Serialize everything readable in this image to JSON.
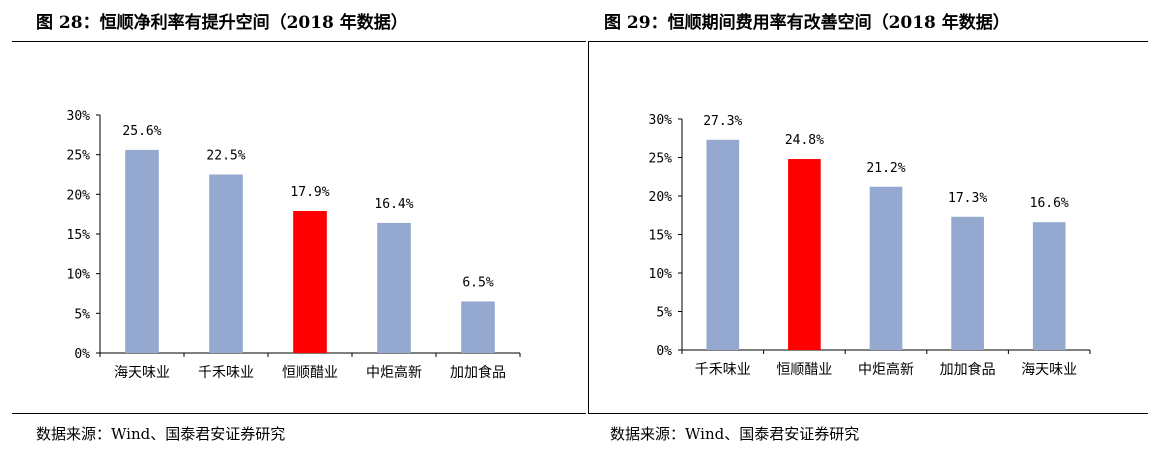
{
  "figures": [
    {
      "title": "图 28：恒顺净利率有提升空间（2018 年数据）",
      "source": "数据来源：Wind、国泰君安证券研究",
      "chart_data": {
        "type": "bar",
        "categories": [
          "海天味业",
          "千禾味业",
          "恒顺醋业",
          "中炬高新",
          "加加食品"
        ],
        "values": [
          25.6,
          22.5,
          17.9,
          16.4,
          6.5
        ],
        "data_labels": [
          "25.6%",
          "22.5%",
          "17.9%",
          "16.4%",
          "6.5%"
        ],
        "highlight_category": "恒顺醋业",
        "ylim": [
          0,
          30
        ],
        "yticks": [
          "0%",
          "5%",
          "10%",
          "15%",
          "20%",
          "25%",
          "30%"
        ],
        "grid": false,
        "colors": {
          "bar": "#94a8d0",
          "highlight": "#ff0000"
        }
      }
    },
    {
      "title": "图 29：恒顺期间费用率有改善空间（2018 年数据）",
      "source": "数据来源：Wind、国泰君安证券研究",
      "chart_data": {
        "type": "bar",
        "categories": [
          "千禾味业",
          "恒顺醋业",
          "中炬高新",
          "加加食品",
          "海天味业"
        ],
        "values": [
          27.3,
          24.8,
          21.2,
          17.3,
          16.6
        ],
        "data_labels": [
          "27.3%",
          "24.8%",
          "21.2%",
          "17.3%",
          "16.6%"
        ],
        "highlight_category": "恒顺醋业",
        "ylim": [
          0,
          30
        ],
        "yticks": [
          "0%",
          "5%",
          "10%",
          "15%",
          "20%",
          "25%",
          "30%"
        ],
        "grid": false,
        "colors": {
          "bar": "#94a8d0",
          "highlight": "#ff0000"
        }
      }
    }
  ]
}
